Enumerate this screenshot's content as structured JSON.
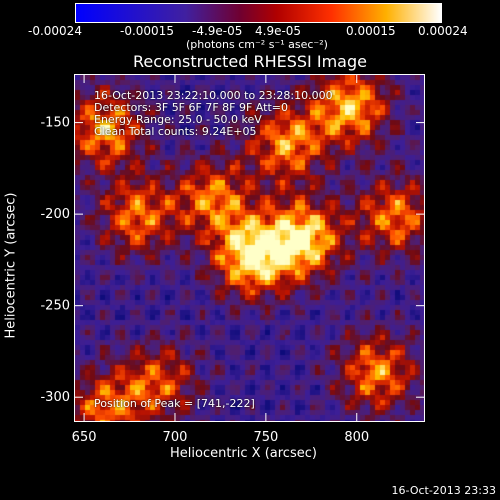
{
  "colorbar": {
    "tick_labels": [
      "-0.00024",
      "-0.00015",
      "-4.9e-05",
      "4.9e-05",
      "0.00015",
      "0.00024"
    ],
    "units": "(photons cm⁻² s⁻¹ asec⁻²)"
  },
  "chart_data": {
    "type": "heatmap",
    "title": "Reconstructed RHESSI Image",
    "xlabel": "Heliocentric X (arcsec)",
    "ylabel": "Heliocentric Y (arcsec)",
    "xlim": [
      645,
      837
    ],
    "ylim": [
      -313,
      -124
    ],
    "x_ticks": [
      650,
      700,
      750,
      800
    ],
    "y_ticks": [
      -150,
      -200,
      -250,
      -300
    ],
    "colorbar_range": [
      -0.00024,
      0.00024
    ],
    "colormap": "blue-purple-red-yellow-white",
    "colors": [
      "#0000ff",
      "#4020a0",
      "#a00000",
      "#ff4000",
      "#ffc000",
      "#ffffff"
    ],
    "peak": [
      741,
      -222
    ],
    "bright_sources": [
      {
        "x": 741,
        "y": -222,
        "intensity": 1.0
      },
      {
        "x": 770,
        "y": -212,
        "intensity": 0.95
      },
      {
        "x": 760,
        "y": -160,
        "intensity": 0.75
      },
      {
        "x": 720,
        "y": -190,
        "intensity": 0.7
      },
      {
        "x": 660,
        "y": -152,
        "intensity": 0.8
      },
      {
        "x": 678,
        "y": -200,
        "intensity": 0.7
      },
      {
        "x": 795,
        "y": -140,
        "intensity": 0.85
      },
      {
        "x": 820,
        "y": -200,
        "intensity": 0.7
      },
      {
        "x": 810,
        "y": -285,
        "intensity": 0.75
      },
      {
        "x": 690,
        "y": -290,
        "intensity": 0.6
      },
      {
        "x": 660,
        "y": -305,
        "intensity": 0.65
      }
    ],
    "info_lines": [
      "16-Oct-2013 23:22:10.000 to 23:28:10.000",
      "Detectors: 3F 5F 6F 7F 8F 9F  Att=0",
      "Energy Range: 25.0 - 50.0 keV",
      "Clean     Total counts: 9.24E+05"
    ],
    "peak_label": "Position of Peak = [741,-222]"
  },
  "footer": {
    "timestamp": "16-Oct-2013 23:33"
  }
}
